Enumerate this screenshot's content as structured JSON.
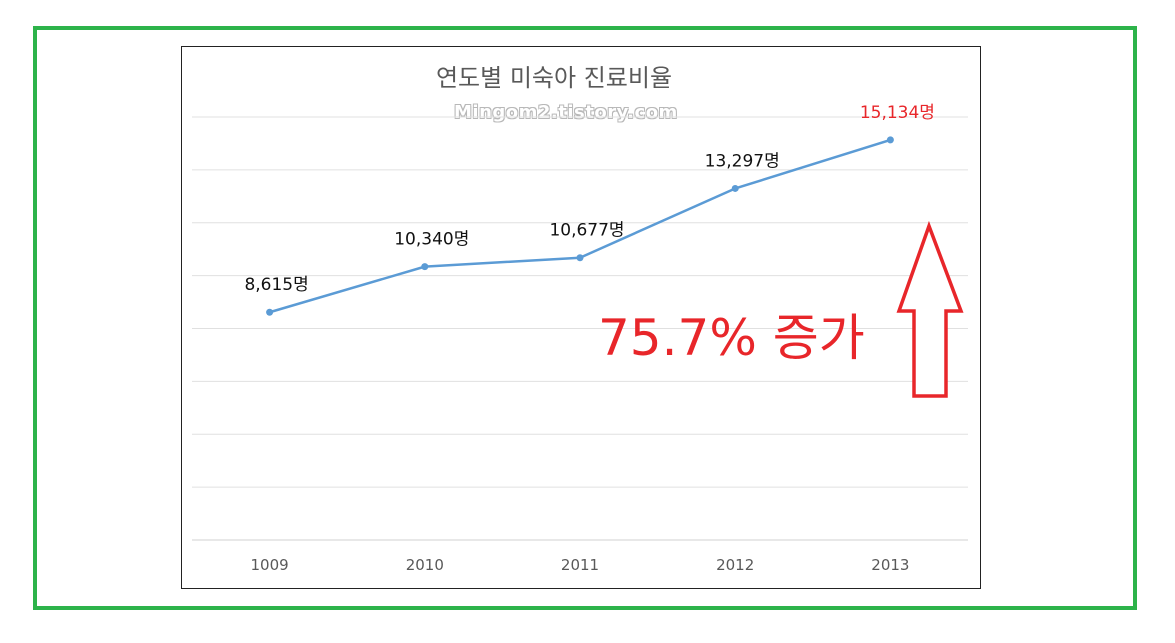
{
  "chart_data": {
    "type": "line",
    "title": "연도별 미숙아 진료비율",
    "categories": [
      "1009",
      "2010",
      "2011",
      "2012",
      "2013"
    ],
    "values": [
      8615,
      10340,
      10677,
      13297,
      15134
    ],
    "data_labels": [
      "8,615명",
      "10,340명",
      "10,677명",
      "13,297명",
      "15,134명"
    ],
    "ylim": [
      0,
      16000
    ],
    "grid": true,
    "legend": "none",
    "line_color": "#5b9bd5",
    "highlight_label_color": "#e8262a",
    "annotation": "75.7% 증가"
  },
  "watermark": "Mingom2.tistory.com",
  "colors": {
    "frame": "#2db34a",
    "annotation": "#e8262a"
  }
}
